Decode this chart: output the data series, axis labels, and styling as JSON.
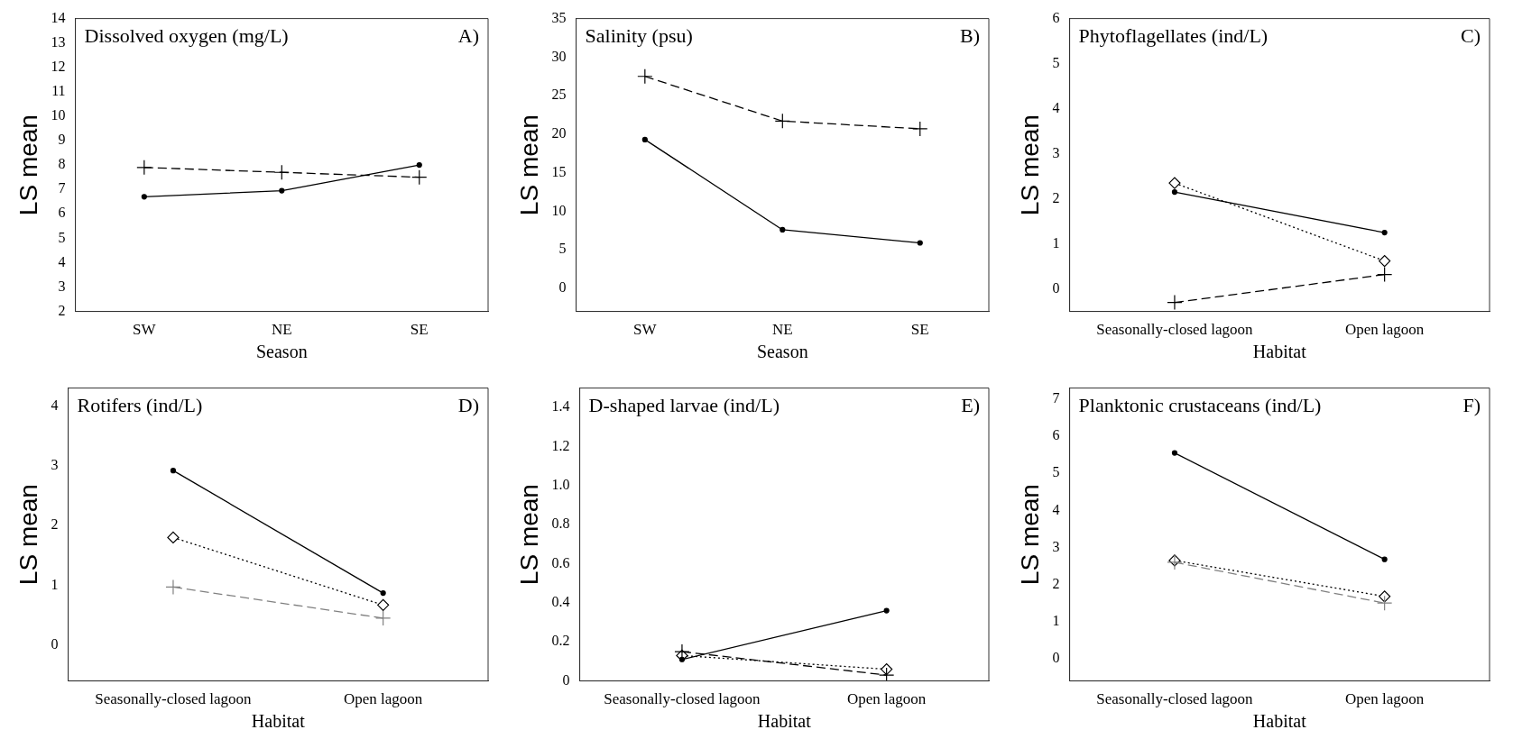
{
  "chart_data": [
    {
      "type": "line",
      "title": "Dissolved oxygen (mg/L)",
      "annotations": [
        "A)"
      ],
      "categories": [
        "SW",
        "NE",
        "SE"
      ],
      "xlabel": "Season",
      "ylabel": "LS mean",
      "ylim": [
        2,
        14
      ],
      "yticks": [
        2,
        3,
        4,
        5,
        6,
        7,
        8,
        9,
        10,
        11,
        12,
        13,
        14
      ],
      "grid": false,
      "series": [
        {
          "color": "#000000",
          "values": [
            6.7,
            6.95,
            8.0
          ],
          "marker": "circle",
          "line_style": "solid"
        },
        {
          "color": "#000000",
          "values": [
            7.9,
            7.7,
            7.5
          ],
          "marker": "cross",
          "line_style": "dashed"
        }
      ]
    },
    {
      "type": "line",
      "title": "Salinity (psu)",
      "annotations": [
        "B)"
      ],
      "categories": [
        "SW",
        "NE",
        "SE"
      ],
      "xlabel": "Season",
      "ylabel": "LS mean",
      "ylim": [
        -3,
        35
      ],
      "yticks": [
        0,
        5,
        10,
        15,
        20,
        25,
        30,
        35
      ],
      "grid": false,
      "series": [
        {
          "color": "#000000",
          "values": [
            27.5,
            21.7,
            20.7
          ],
          "marker": "cross",
          "line_style": "dashed"
        },
        {
          "color": "#000000",
          "values": [
            19.3,
            7.6,
            5.9
          ],
          "marker": "circle",
          "line_style": "solid"
        }
      ]
    },
    {
      "type": "line",
      "title": "Phytoflagellates (ind/L)",
      "annotations": [
        "C)"
      ],
      "categories": [
        "Seasonally-closed lagoon",
        "Open lagoon"
      ],
      "xlabel": "Habitat",
      "ylabel": "LS mean",
      "ylim": [
        -0.5,
        6
      ],
      "yticks": [
        0,
        1,
        2,
        3,
        4,
        5,
        6
      ],
      "grid": false,
      "series": [
        {
          "color": "#000000",
          "values": [
            2.15,
            1.25
          ],
          "marker": "circle",
          "line_style": "solid"
        },
        {
          "color": "#000000",
          "values": [
            2.35,
            0.62
          ],
          "marker": "diamond",
          "line_style": "dotted"
        },
        {
          "color": "#000000",
          "values": [
            -0.3,
            0.32
          ],
          "marker": "cross",
          "line_style": "dashed"
        }
      ]
    },
    {
      "type": "line",
      "title": "Rotifers (ind/L)",
      "annotations": [
        "D)"
      ],
      "categories": [
        "Seasonally-closed lagoon",
        "Open lagoon"
      ],
      "xlabel": "Habitat",
      "ylabel": "LS mean",
      "ylim": [
        -0.6,
        4.3
      ],
      "yticks": [
        0,
        1,
        2,
        3,
        4
      ],
      "grid": false,
      "series": [
        {
          "color": "#000000",
          "values": [
            2.92,
            0.87
          ],
          "marker": "circle",
          "line_style": "solid"
        },
        {
          "color": "#000000",
          "values": [
            1.8,
            0.67
          ],
          "marker": "diamond",
          "line_style": "dotted"
        },
        {
          "color": "#808080",
          "values": [
            0.97,
            0.45
          ],
          "marker": "cross",
          "line_style": "dashed"
        }
      ]
    },
    {
      "type": "line",
      "title": "D-shaped larvae (ind/L)",
      "annotations": [
        "E)"
      ],
      "categories": [
        "Seasonally-closed lagoon",
        "Open lagoon"
      ],
      "xlabel": "Habitat",
      "ylabel": "LS mean",
      "ylim": [
        0,
        1.5
      ],
      "yticks": [
        0,
        0.2,
        0.4,
        0.6,
        0.8,
        {
          "value": 1,
          "label": "1.0"
        },
        1.2,
        1.4
      ],
      "grid": false,
      "series": [
        {
          "color": "#000000",
          "values": [
            0.11,
            0.36
          ],
          "marker": "circle",
          "line_style": "solid"
        },
        {
          "color": "#000000",
          "values": [
            0.13,
            0.06
          ],
          "marker": "diamond",
          "line_style": "dotted"
        },
        {
          "color": "#000000",
          "values": [
            0.15,
            0.03
          ],
          "marker": "cross",
          "line_style": "dashed"
        }
      ]
    },
    {
      "type": "line",
      "title": "Planktonic crustaceans (ind/L)",
      "annotations": [
        "F)"
      ],
      "categories": [
        "Seasonally-closed lagoon",
        "Open lagoon"
      ],
      "xlabel": "Habitat",
      "ylabel": "LS mean",
      "ylim": [
        -0.6,
        7.3
      ],
      "yticks": [
        0,
        1,
        2,
        3,
        4,
        5,
        6,
        7
      ],
      "grid": false,
      "series": [
        {
          "color": "#000000",
          "values": [
            5.55,
            2.68
          ],
          "marker": "circle",
          "line_style": "solid"
        },
        {
          "color": "#000000",
          "values": [
            2.65,
            1.68
          ],
          "marker": "diamond",
          "line_style": "dotted"
        },
        {
          "color": "#808080",
          "values": [
            2.6,
            1.5
          ],
          "marker": "cross",
          "line_style": "dashed"
        }
      ]
    }
  ]
}
